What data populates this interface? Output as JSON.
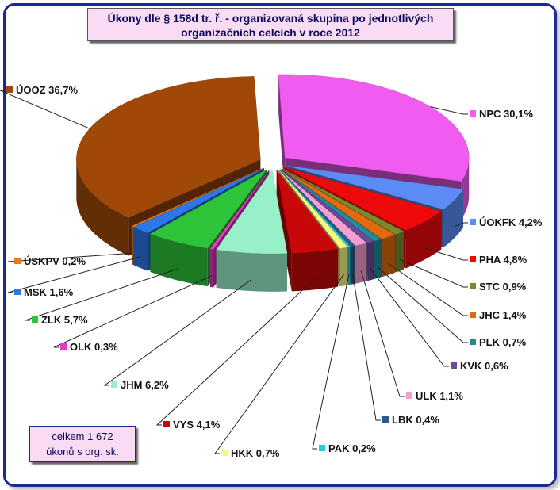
{
  "title_line1": "Úkony dle § 158d tr. ř. - organizovaná  skupina  po jednotlivých",
  "title_line2": "organizačních  celcích  v roce 2012",
  "total_line1": "celkem 1 672",
  "total_line2": "úkonů s org. sk.",
  "chart_data": {
    "type": "pie",
    "style": "3d-exploded",
    "slices": [
      {
        "name": "NPC",
        "value": 30.1,
        "label": "NPC 30,1%",
        "color": "#f05cf0"
      },
      {
        "name": "ÚOKFK",
        "value": 4.2,
        "label": "ÚOKFK 4,2%",
        "color": "#5b8cf5"
      },
      {
        "name": "PHA",
        "value": 4.8,
        "label": "PHA 4,8%",
        "color": "#ee0a0a"
      },
      {
        "name": "STC",
        "value": 0.9,
        "label": "STC 0,9%",
        "color": "#7a8a2a"
      },
      {
        "name": "JHC",
        "value": 1.4,
        "label": "JHC 1,4%",
        "color": "#e06a10"
      },
      {
        "name": "PLK",
        "value": 0.7,
        "label": "PLK 0,7%",
        "color": "#238a9a"
      },
      {
        "name": "KVK",
        "value": 0.6,
        "label": "KVK 0,6%",
        "color": "#6a4a9a"
      },
      {
        "name": "ULK",
        "value": 1.1,
        "label": "ULK 1,1%",
        "color": "#f5a0d0"
      },
      {
        "name": "LBK",
        "value": 0.4,
        "label": "LBK 0,4%",
        "color": "#2a5a8a"
      },
      {
        "name": "PAK",
        "value": 0.2,
        "label": "PAK 0,2%",
        "color": "#20d0d8"
      },
      {
        "name": "HKK",
        "value": 0.7,
        "label": "HKK 0,7%",
        "color": "#f8f880"
      },
      {
        "name": "VYS",
        "value": 4.1,
        "label": "VYS 4,1%",
        "color": "#c80808"
      },
      {
        "name": "JHM",
        "value": 6.2,
        "label": "JHM 6,2%",
        "color": "#98f0c8"
      },
      {
        "name": "OLK",
        "value": 0.3,
        "label": "OLK 0,3%",
        "color": "#e838c8"
      },
      {
        "name": "ZLK",
        "value": 5.7,
        "label": "ZLK 5,7%",
        "color": "#2ec43a"
      },
      {
        "name": "MSK",
        "value": 1.6,
        "label": "MSK 1,6%",
        "color": "#2c78e8"
      },
      {
        "name": "ÚSKPV",
        "value": 0.2,
        "label": "ÚSKPV 0,2%",
        "color": "#f07818"
      },
      {
        "name": "ÚOOZ",
        "value": 36.7,
        "label": "ÚOOZ 36,7%",
        "color": "#a04808"
      }
    ]
  }
}
